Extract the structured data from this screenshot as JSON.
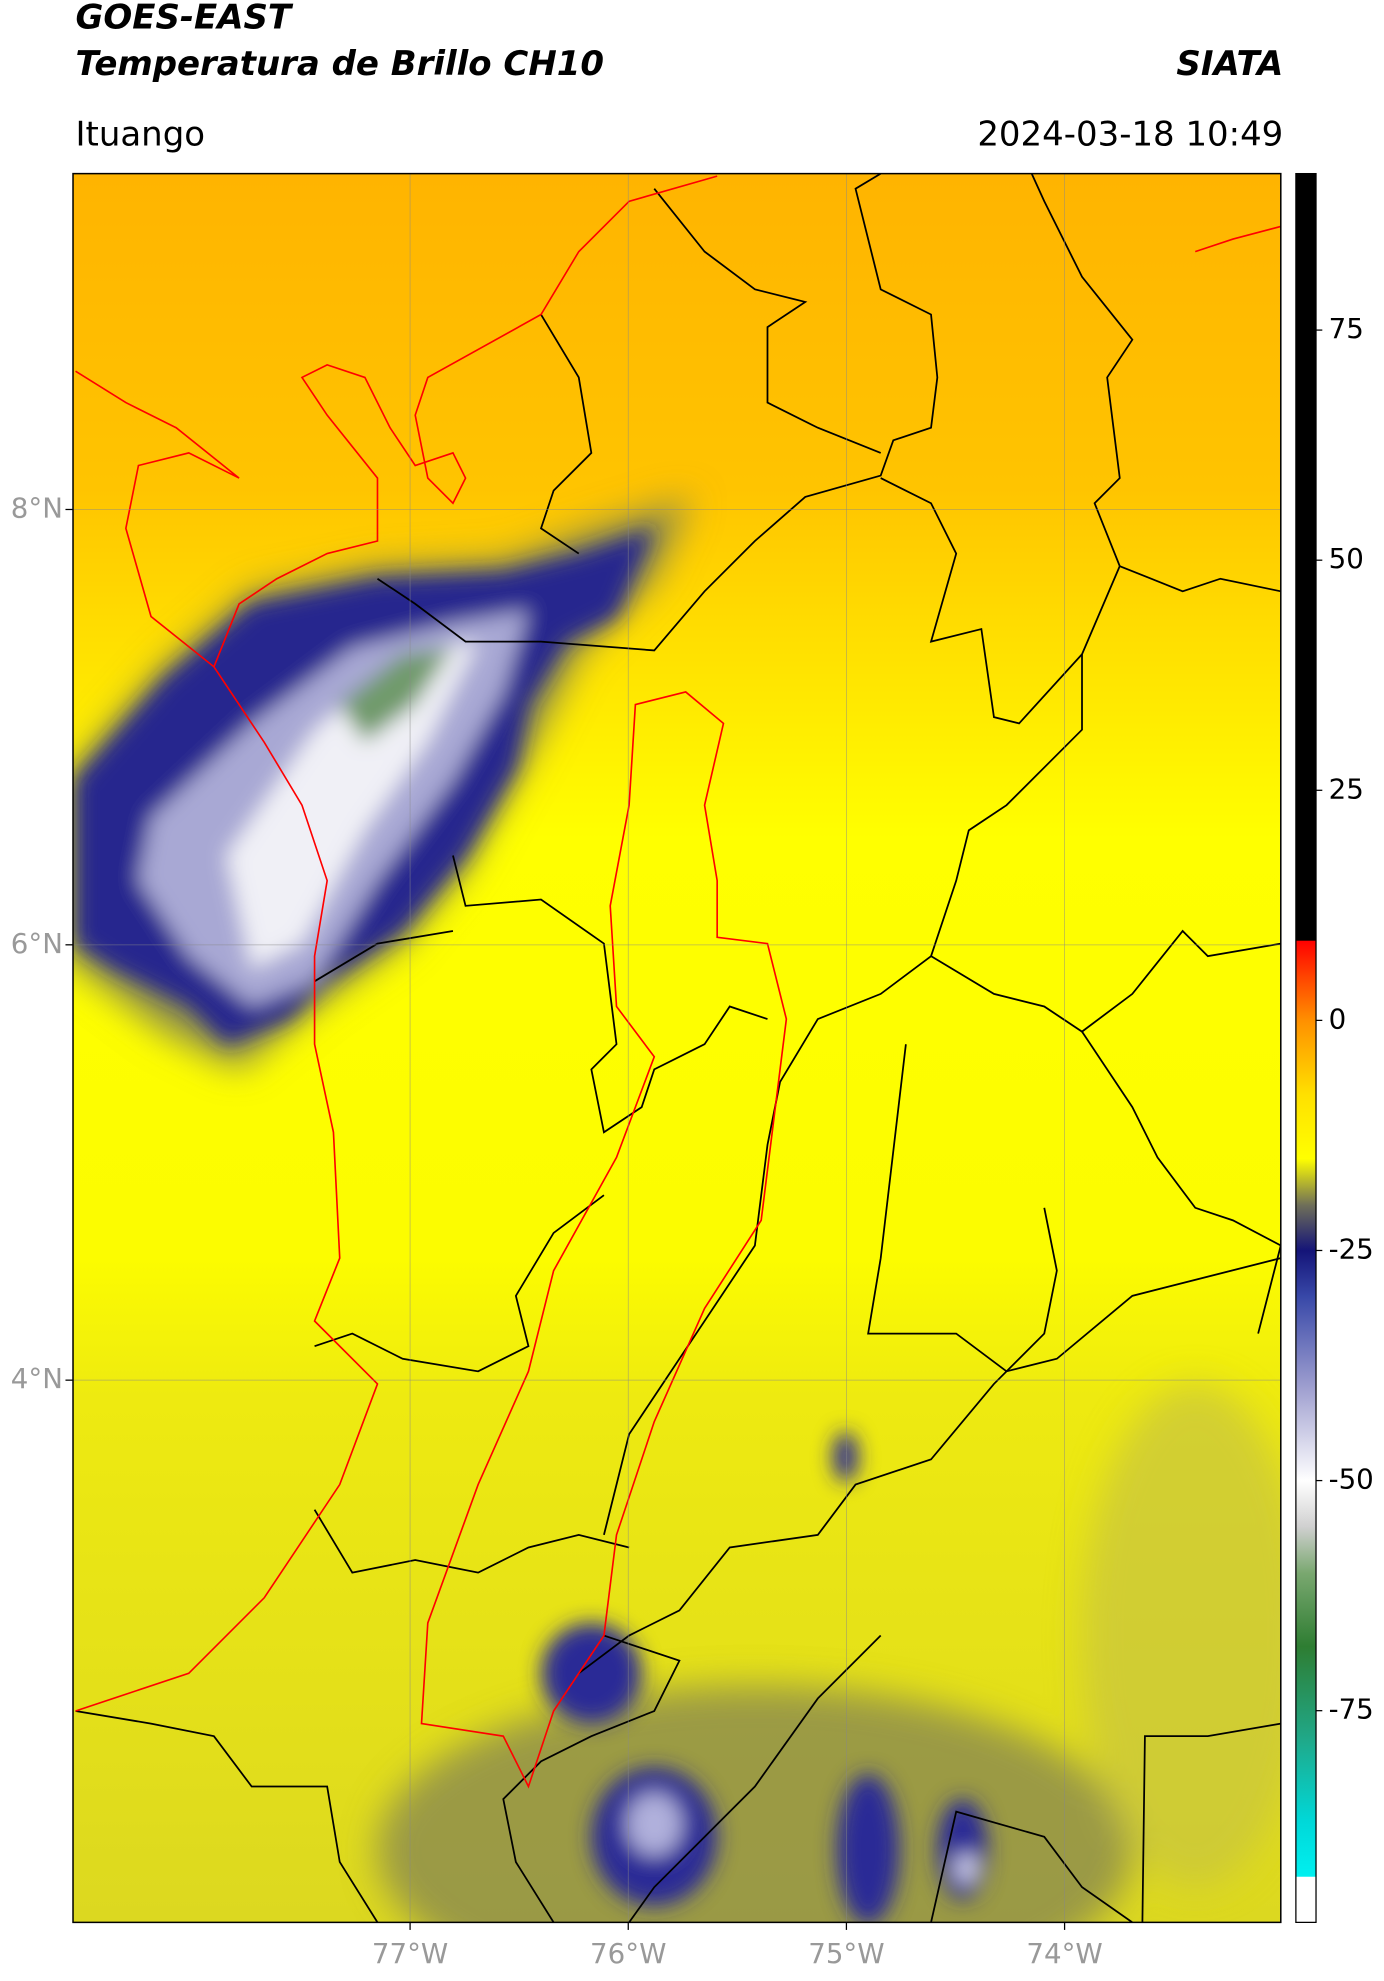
{
  "header": {
    "title": "GOES-EAST",
    "subtitle": "Temperatura de Brillo CH10",
    "source": "SIATA",
    "region": "Ituango",
    "datetime": "2024-03-18 10:49"
  },
  "map": {
    "xlim": [
      -78.545,
      -73.009
    ],
    "ylim": [
      1.509,
      9.543
    ],
    "xticks": [
      {
        "value": -77,
        "label": "77°W"
      },
      {
        "value": -76,
        "label": "76°W"
      },
      {
        "value": -75,
        "label": "75°W"
      },
      {
        "value": -74,
        "label": "74°W"
      }
    ],
    "yticks": [
      {
        "value": 4,
        "label": "4°N"
      },
      {
        "value": 6,
        "label": "6°N"
      },
      {
        "value": 8,
        "label": "8°N"
      }
    ],
    "grid": true
  },
  "colorbar": {
    "clim": [
      -98,
      92
    ],
    "ticks": [
      -75,
      -50,
      -25,
      0,
      25,
      50,
      75
    ],
    "stops": [
      {
        "value": -98,
        "color": "#ffffff"
      },
      {
        "value": -93,
        "color": "#ffffff"
      },
      {
        "value": -93,
        "color": "#00f0f0"
      },
      {
        "value": -87,
        "color": "#00d8d8"
      },
      {
        "value": -78,
        "color": "#20a888"
      },
      {
        "value": -68,
        "color": "#2e7d32"
      },
      {
        "value": -60,
        "color": "#7aa870"
      },
      {
        "value": -55,
        "color": "#d0d0d0"
      },
      {
        "value": -50,
        "color": "#ffffff"
      },
      {
        "value": -40,
        "color": "#a0a0d0"
      },
      {
        "value": -30,
        "color": "#3848a8"
      },
      {
        "value": -25,
        "color": "#141478"
      },
      {
        "value": -20,
        "color": "#707058"
      },
      {
        "value": -15,
        "color": "#ffff00"
      },
      {
        "value": -8,
        "color": "#ffe000"
      },
      {
        "value": 0,
        "color": "#ff9000"
      },
      {
        "value": 5,
        "color": "#ff4000"
      },
      {
        "value": 8.7,
        "color": "#ff0000"
      },
      {
        "value": 8.7,
        "color": "#000000"
      },
      {
        "value": 92,
        "color": "#000000"
      }
    ]
  }
}
